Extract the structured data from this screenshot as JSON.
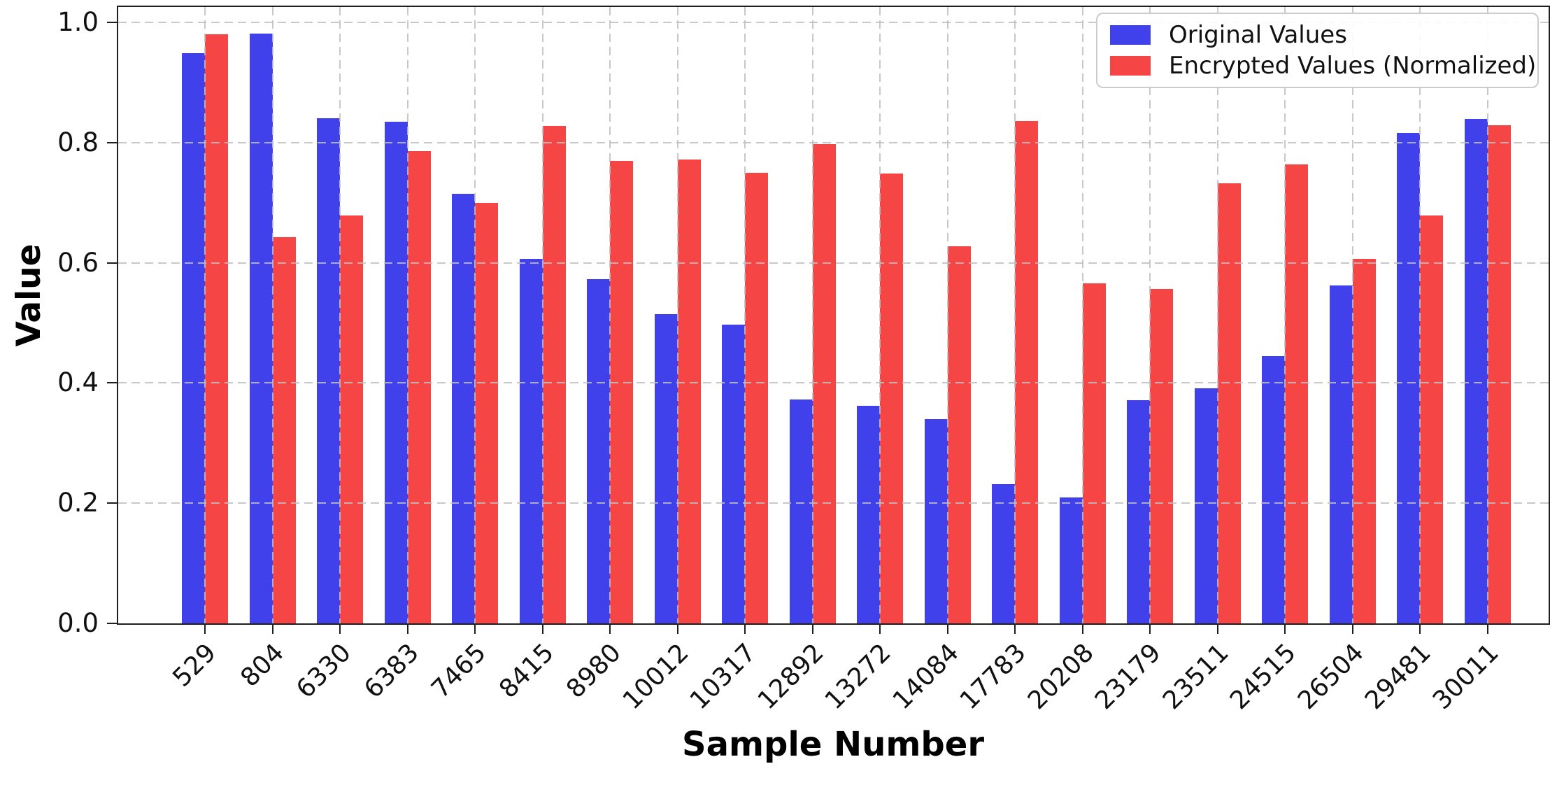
{
  "chart_data": {
    "type": "bar",
    "title": "",
    "xlabel": "Sample Number",
    "ylabel": "Value",
    "categories": [
      "529",
      "804",
      "6330",
      "6383",
      "7465",
      "8415",
      "8980",
      "10012",
      "10317",
      "12892",
      "13272",
      "14084",
      "17783",
      "20208",
      "23179",
      "23511",
      "24515",
      "26504",
      "29481",
      "30011"
    ],
    "series": [
      {
        "name": "Original Values",
        "color": "#4141ec",
        "values": [
          0.949,
          0.981,
          0.841,
          0.835,
          0.715,
          0.607,
          0.573,
          0.515,
          0.497,
          0.373,
          0.362,
          0.34,
          0.232,
          0.21,
          0.371,
          0.391,
          0.445,
          0.562,
          0.816,
          0.839
        ]
      },
      {
        "name": "Encrypted Values (Normalized)",
        "color": "#f54545",
        "values": [
          0.98,
          0.643,
          0.679,
          0.786,
          0.7,
          0.828,
          0.77,
          0.772,
          0.75,
          0.797,
          0.749,
          0.627,
          0.836,
          0.566,
          0.557,
          0.732,
          0.764,
          0.606,
          0.679,
          0.829
        ]
      }
    ],
    "ylim": [
      0.0,
      1.0
    ],
    "ytick_labels": [
      "0.0",
      "0.2",
      "0.4",
      "0.6",
      "0.8",
      "1.0"
    ],
    "ytick_values": [
      0.0,
      0.2,
      0.4,
      0.6,
      0.8,
      1.0
    ],
    "x_tick_rotation": 45,
    "grid": "dashed-both-axes",
    "grid_color": "#bfbfbf",
    "legend_position": "upper-right",
    "spine_color": "#1f1f1f"
  }
}
